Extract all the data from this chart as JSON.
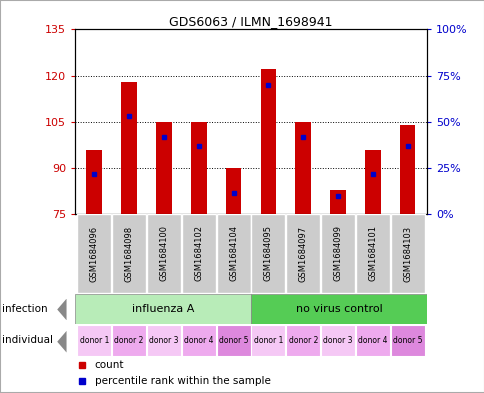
{
  "title": "GDS6063 / ILMN_1698941",
  "samples": [
    "GSM1684096",
    "GSM1684098",
    "GSM1684100",
    "GSM1684102",
    "GSM1684104",
    "GSM1684095",
    "GSM1684097",
    "GSM1684099",
    "GSM1684101",
    "GSM1684103"
  ],
  "bar_tops": [
    96,
    118,
    105,
    105,
    90,
    122,
    105,
    83,
    96,
    104
  ],
  "bar_base": 75,
  "blue_dot_values": [
    88,
    107,
    100,
    97,
    82,
    117,
    100,
    81,
    88,
    97
  ],
  "ylim": [
    75,
    135
  ],
  "yticks_left": [
    75,
    90,
    105,
    120,
    135
  ],
  "yticks_right_labels": [
    "0%",
    "25%",
    "50%",
    "75%",
    "100%"
  ],
  "right_tick_positions": [
    75,
    90,
    105,
    120,
    135
  ],
  "infection_labels": [
    "influenza A",
    "no virus control"
  ],
  "infection_color_left": "#b8ecb8",
  "infection_color_right": "#55cc55",
  "individual_colors": [
    "#f5c8f5",
    "#eeaaee",
    "#f5c8f5",
    "#eeaaee",
    "#dd88dd",
    "#f5c8f5",
    "#eeaaee",
    "#f5c8f5",
    "#eeaaee",
    "#dd88dd"
  ],
  "individual_labels": [
    "donor 1",
    "donor 2",
    "donor 3",
    "donor 4",
    "donor 5",
    "donor 1",
    "donor 2",
    "donor 3",
    "donor 4",
    "donor 5"
  ],
  "sample_label_bg": "#cccccc",
  "bar_color": "#cc0000",
  "dot_color": "#0000cc",
  "left_label_color": "#cc0000",
  "right_label_color": "#0000cc",
  "border_color": "#aaaaaa"
}
